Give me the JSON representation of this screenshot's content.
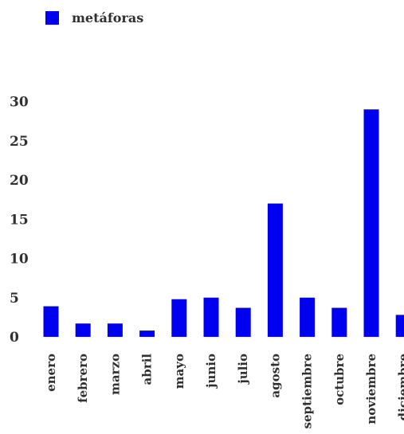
{
  "chart_data": {
    "type": "bar",
    "title": "",
    "xlabel": "",
    "ylabel": "",
    "categories": [
      "enero",
      "febrero",
      "marzo",
      "abril",
      "mayo",
      "junio",
      "julio",
      "agosto",
      "septiembre",
      "octubre",
      "noviembre",
      "diciembre"
    ],
    "series": [
      {
        "name": "metáforas",
        "values": [
          3.9,
          1.7,
          1.7,
          0.8,
          4.8,
          5.0,
          3.7,
          17.0,
          5.0,
          3.7,
          29.0,
          2.8
        ]
      }
    ],
    "ylim": [
      0,
      33
    ],
    "yticks": [
      30,
      25,
      20,
      15,
      10,
      5,
      0
    ],
    "grid": false,
    "legend_position": "top-left",
    "colors": {
      "bar": "#0000f0",
      "text": "#303030",
      "background": "#ffffff"
    }
  }
}
